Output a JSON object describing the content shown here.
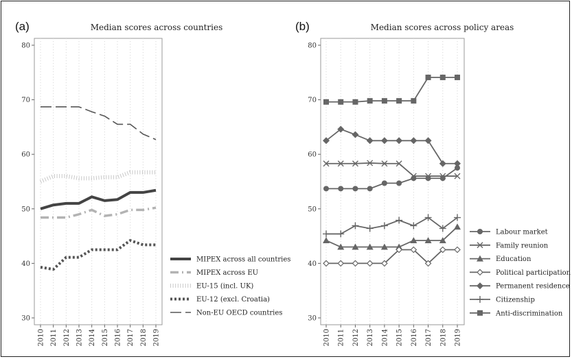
{
  "chart_data": [
    {
      "type": "line",
      "panel_label": "(a)",
      "title": "Median scores across countries",
      "xlabel": "",
      "ylabel": "",
      "ylim": [
        30,
        80
      ],
      "yticks": [
        30,
        40,
        50,
        60,
        70,
        80
      ],
      "x": [
        2010,
        2011,
        2012,
        2013,
        2014,
        2015,
        2016,
        2017,
        2018,
        2019
      ],
      "grid": "vertical dotted",
      "legend_position": "right-bottom",
      "series": [
        {
          "name": "MIPEX across all countries",
          "style": "solid-thick",
          "color": "#444444",
          "values": [
            50.0,
            50.7,
            51.0,
            51.0,
            52.2,
            51.5,
            51.7,
            53.0,
            53.0,
            53.4
          ]
        },
        {
          "name": "MIPEX across EU",
          "style": "long-dash-thick",
          "color": "#b3b3b3",
          "values": [
            48.4,
            48.4,
            48.4,
            49.0,
            49.8,
            48.7,
            49.0,
            49.8,
            49.8,
            50.2
          ]
        },
        {
          "name": "EU-15 (incl. UK)",
          "style": "comb",
          "color": "#c8c8c8",
          "values": [
            55.0,
            56.0,
            56.0,
            55.6,
            55.6,
            55.8,
            55.8,
            56.7,
            56.7,
            56.7
          ]
        },
        {
          "name": "EU-12 (excl. Croatia)",
          "style": "dotted-thick",
          "color": "#555555",
          "values": [
            39.3,
            38.9,
            41.1,
            41.1,
            42.5,
            42.5,
            42.5,
            44.2,
            43.4,
            43.4
          ]
        },
        {
          "name": "Non-EU OECD countries",
          "style": "dash",
          "color": "#555555",
          "values": [
            68.7,
            68.7,
            68.7,
            68.7,
            67.8,
            67.0,
            65.5,
            65.5,
            63.7,
            62.7
          ]
        }
      ]
    },
    {
      "type": "line",
      "panel_label": "(b)",
      "title": "Median scores across policy areas",
      "xlabel": "",
      "ylabel": "",
      "ylim": [
        30,
        80
      ],
      "yticks": [
        30,
        40,
        50,
        60,
        70,
        80
      ],
      "x": [
        2010,
        2011,
        2012,
        2013,
        2014,
        2015,
        2016,
        2017,
        2018,
        2019
      ],
      "grid": "vertical dotted",
      "legend_position": "right-bottom",
      "series": [
        {
          "name": "Labour market",
          "marker": "circle",
          "color": "#666666",
          "values": [
            53.7,
            53.7,
            53.7,
            53.7,
            54.7,
            54.7,
            55.6,
            55.6,
            55.6,
            57.5
          ]
        },
        {
          "name": "Family reunion",
          "marker": "x",
          "color": "#666666",
          "values": [
            58.3,
            58.3,
            58.3,
            58.4,
            58.3,
            58.3,
            56.0,
            56.0,
            56.0,
            56.0
          ]
        },
        {
          "name": "Education",
          "marker": "triangle",
          "color": "#666666",
          "values": [
            44.2,
            43.0,
            43.0,
            43.0,
            43.0,
            43.0,
            44.2,
            44.2,
            44.2,
            46.7
          ]
        },
        {
          "name": "Political participation",
          "marker": "diamond-open",
          "color": "#666666",
          "values": [
            40.0,
            40.0,
            40.0,
            40.0,
            40.0,
            42.5,
            42.5,
            40.0,
            42.5,
            42.5
          ]
        },
        {
          "name": "Permanent residence",
          "marker": "diamond",
          "color": "#666666",
          "values": [
            62.5,
            64.6,
            63.6,
            62.5,
            62.5,
            62.5,
            62.5,
            62.5,
            58.3,
            58.3
          ]
        },
        {
          "name": "Citizenship",
          "marker": "plus",
          "color": "#666666",
          "values": [
            45.4,
            45.4,
            46.9,
            46.4,
            46.9,
            47.9,
            46.9,
            48.4,
            46.4,
            48.4
          ]
        },
        {
          "name": "Anti-discrimination",
          "marker": "square",
          "color": "#666666",
          "values": [
            69.6,
            69.6,
            69.6,
            69.8,
            69.8,
            69.8,
            69.8,
            74.1,
            74.1,
            74.1
          ]
        }
      ]
    }
  ]
}
